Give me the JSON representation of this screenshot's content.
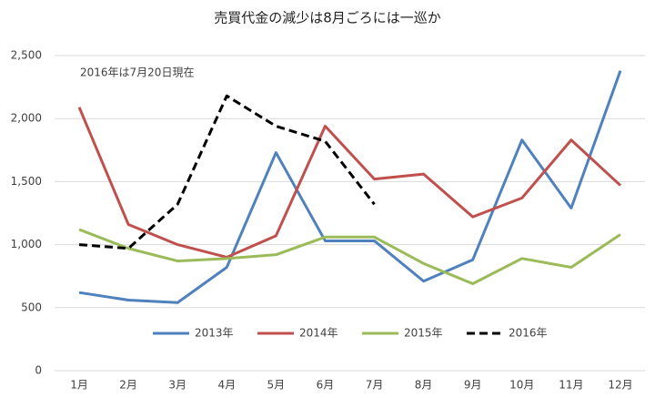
{
  "chart_data": {
    "type": "line",
    "title": "売買代金の減少は8月ごろには一巡か",
    "annotation": "2016年は7月20日現在",
    "categories": [
      "1月",
      "2月",
      "3月",
      "4月",
      "5月",
      "6月",
      "7月",
      "8月",
      "9月",
      "10月",
      "11月",
      "12月"
    ],
    "series": [
      {
        "name": "2013年",
        "color": "#4f81bd",
        "dashed": false,
        "values": [
          620,
          560,
          540,
          820,
          1730,
          1030,
          1030,
          710,
          880,
          1830,
          1290,
          2380
        ]
      },
      {
        "name": "2014年",
        "color": "#c0504d",
        "dashed": false,
        "values": [
          2090,
          1160,
          1000,
          900,
          1070,
          1940,
          1520,
          1560,
          1220,
          1370,
          1830,
          1470
        ]
      },
      {
        "name": "2015年",
        "color": "#9bbb59",
        "dashed": false,
        "values": [
          1120,
          970,
          870,
          890,
          920,
          1060,
          1060,
          850,
          690,
          890,
          820,
          1080
        ]
      },
      {
        "name": "2016年",
        "color": "#000000",
        "dashed": true,
        "values": [
          1000,
          970,
          1320,
          2180,
          1940,
          1820,
          1320,
          null,
          null,
          null,
          null,
          null
        ]
      }
    ],
    "ylim": [
      0,
      2500
    ],
    "yticks": [
      0,
      500,
      {
        "value": 1000,
        "label": "1,000"
      },
      {
        "value": 1500,
        "label": "1,500"
      },
      {
        "value": 2000,
        "label": "2,000"
      },
      {
        "value": 2500,
        "label": "2,500"
      }
    ],
    "grid": true,
    "legend": "bottom"
  }
}
